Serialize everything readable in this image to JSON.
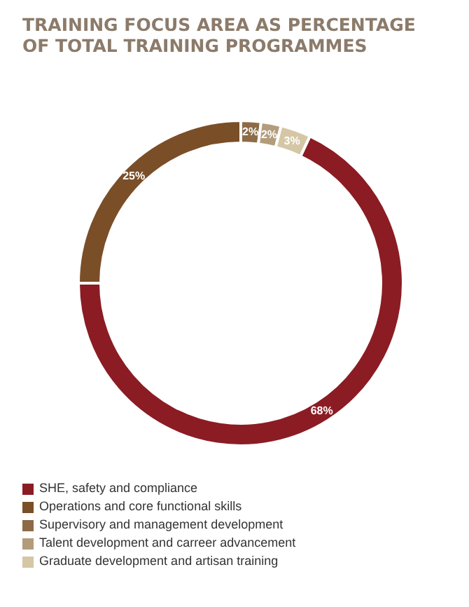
{
  "chart_data": {
    "type": "donut",
    "title": "TRAINING FOCUS AREA AS PERCENTAGE OF TOTAL TRAINING PROGRAMMES",
    "categories": [
      "SHE, safety and compliance",
      "Operations and core functional skills",
      "Supervisory and management development",
      "Talent development and carreer advancement",
      "Graduate development and artisan training"
    ],
    "values": [
      68,
      25,
      2,
      2,
      3
    ],
    "colors": [
      "#8b1c24",
      "#7a4e27",
      "#8d6b47",
      "#b39c7c",
      "#d5c7a5"
    ],
    "value_labels": [
      "68%",
      "25%",
      "2%",
      "2%",
      "3%"
    ],
    "legend": "bottom"
  }
}
